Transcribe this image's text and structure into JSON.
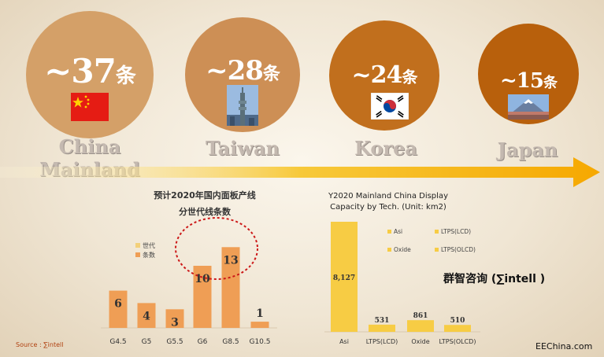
{
  "regions": [
    {
      "value": "~37",
      "unit": "条",
      "name": "China Mainland",
      "color": "#d4a068"
    },
    {
      "value": "~28",
      "unit": "条",
      "name": "Taiwan",
      "color": "#cd8f55"
    },
    {
      "value": "~24",
      "unit": "条",
      "name": "Korea",
      "color": "#c16f1d"
    },
    {
      "value": "~15",
      "unit": "条",
      "name": "Japan",
      "color": "#b8600c"
    }
  ],
  "left_chart_title": [
    "预计2020年国内面板产线",
    "分世代线条数"
  ],
  "right_chart_title": [
    "Y2020 Mainland China Display",
    "Capacity by Tech. (Unit: km2)"
  ],
  "brand_text": "群智咨询 (∑intell )",
  "source_text": "Source : ∑intell",
  "watermark": "EEChina.com",
  "chart_data": [
    {
      "type": "bar",
      "categories": [
        "G4.5",
        "G5",
        "G5.5",
        "G6",
        "G8.5",
        "G10.5"
      ],
      "values": [
        6,
        4,
        3,
        10,
        13,
        1
      ],
      "legend": [
        "世代",
        "条数"
      ],
      "colors": {
        "世代": "#f3d07a",
        "条数": "#ef9e55"
      },
      "highlight": [
        "G6",
        "G8.5"
      ]
    },
    {
      "type": "bar",
      "categories": [
        "Asi",
        "LTPS(LCD)",
        "Oxide",
        "LTPS(OLCD)"
      ],
      "values": [
        8127,
        531,
        861,
        510
      ],
      "legend": [
        "Asi",
        "LTPS(LCD)",
        "Oxide",
        "LTPS(OLCD)"
      ],
      "colors": {
        "bar": "#f7cc44"
      }
    }
  ]
}
